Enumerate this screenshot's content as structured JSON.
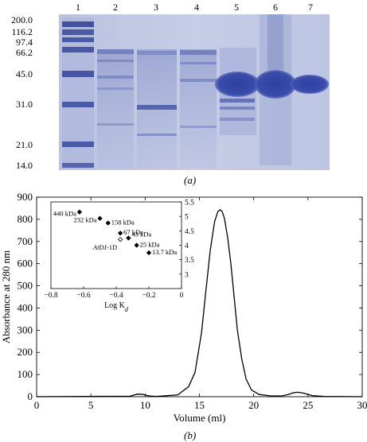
{
  "panel_a": {
    "caption": "(a)",
    "lane_labels": [
      "1",
      "2",
      "3",
      "4",
      "5",
      "6",
      "7"
    ],
    "marker_kda": [
      "200.0",
      "116.2",
      "97.4",
      "66.2",
      "45.0",
      "31.0",
      "21.0",
      "14.0"
    ]
  },
  "panel_b": {
    "caption": "(b)"
  },
  "chart_data": [
    {
      "type": "line",
      "xlabel": "Volume (ml)",
      "ylabel": "Absorbance at 280 nm",
      "xlim": [
        0,
        30
      ],
      "ylim": [
        0,
        900
      ],
      "xticks": [
        "0",
        "5",
        "10",
        "15",
        "20",
        "25",
        "30"
      ],
      "yticks": [
        "0",
        "100",
        "200",
        "300",
        "400",
        "500",
        "600",
        "700",
        "800",
        "900"
      ],
      "series": [
        {
          "x": [
            0,
            8.6,
            9.3,
            9.8,
            10.4,
            11,
            13,
            14,
            14.6,
            15.2,
            15.6,
            16,
            16.4,
            16.7,
            16.9,
            17.1,
            17.3,
            17.6,
            17.9,
            18.2,
            18.5,
            18.9,
            19.3,
            19.8,
            20.5,
            21.5,
            22.5,
            23.2,
            23.6,
            24.0,
            24.4,
            24.9,
            25.4,
            26.5,
            30
          ],
          "y": [
            0,
            2,
            12,
            10,
            3,
            1,
            8,
            45,
            110,
            290,
            480,
            660,
            790,
            835,
            843,
            835,
            805,
            720,
            600,
            450,
            300,
            170,
            80,
            30,
            10,
            4,
            3,
            10,
            17,
            20,
            18,
            12,
            5,
            1,
            0
          ]
        }
      ]
    },
    {
      "type": "scatter",
      "xlabel": "Log K_d",
      "xlim": [
        -0.8,
        0
      ],
      "ylim": [
        2.5,
        5.5
      ],
      "xticks": [
        "−0.8",
        "−0.6",
        "−0.4",
        "−0.2",
        "0"
      ],
      "yticks": [
        "3",
        "3.5",
        "4",
        "4.5",
        "5",
        "5.5"
      ],
      "points": [
        {
          "label": "440 kDa",
          "x": -0.625,
          "y": 5.15,
          "filled": true
        },
        {
          "label": "232 kDa",
          "x": -0.5,
          "y": 4.93,
          "filled": true
        },
        {
          "label": "158 kDa",
          "x": -0.45,
          "y": 4.77,
          "filled": true
        },
        {
          "label": "67 kDa",
          "x": -0.375,
          "y": 4.42,
          "filled": true
        },
        {
          "label": "43 kDa",
          "x": -0.325,
          "y": 4.25,
          "filled": true
        },
        {
          "label": "AtDJ-1D",
          "x": -0.375,
          "y": 4.2,
          "filled": false
        },
        {
          "label": "25 kDa",
          "x": -0.275,
          "y": 4.0,
          "filled": true
        },
        {
          "label": "13.7 kDa",
          "x": -0.2,
          "y": 3.74,
          "filled": true
        }
      ]
    }
  ]
}
